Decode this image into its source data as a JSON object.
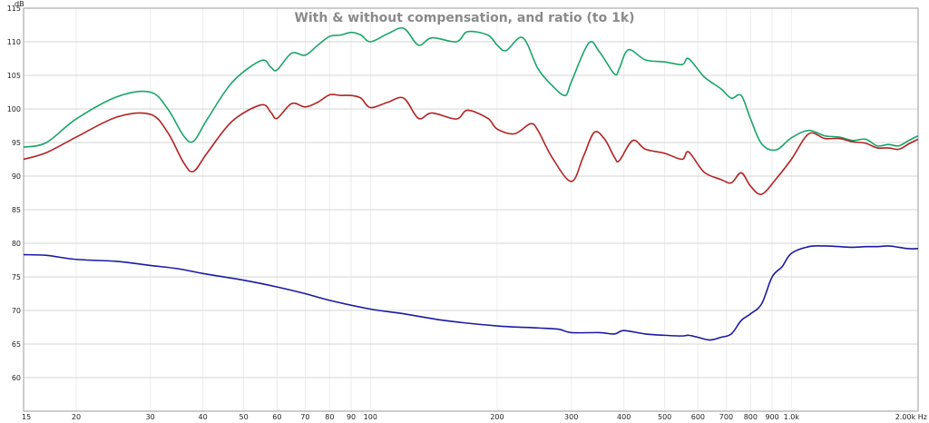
{
  "chart_data": {
    "type": "line",
    "title": "With & without compensation, and ratio (to 1k)",
    "ylabel": "dB",
    "xlabel": "",
    "x_scale": "log",
    "xlim": [
      15,
      2000
    ],
    "ylim": [
      55,
      115
    ],
    "grid": true,
    "y_ticks": [
      60,
      65,
      70,
      75,
      80,
      85,
      90,
      95,
      100,
      105,
      110,
      115
    ],
    "x_ticks": [
      {
        "value": 15,
        "label": "15"
      },
      {
        "value": 20,
        "label": "20"
      },
      {
        "value": 30,
        "label": "30"
      },
      {
        "value": 40,
        "label": "40"
      },
      {
        "value": 50,
        "label": "50"
      },
      {
        "value": 60,
        "label": "60"
      },
      {
        "value": 70,
        "label": "70"
      },
      {
        "value": 80,
        "label": "80"
      },
      {
        "value": 90,
        "label": "90"
      },
      {
        "value": 100,
        "label": "100"
      },
      {
        "value": 200,
        "label": "200"
      },
      {
        "value": 300,
        "label": "300"
      },
      {
        "value": 400,
        "label": "400"
      },
      {
        "value": 500,
        "label": "500"
      },
      {
        "value": 600,
        "label": "600"
      },
      {
        "value": 700,
        "label": "700"
      },
      {
        "value": 800,
        "label": "800"
      },
      {
        "value": 900,
        "label": "900"
      },
      {
        "value": 1000,
        "label": "1.0k"
      },
      {
        "value": 2000,
        "label": "2.00k Hz"
      }
    ],
    "series": [
      {
        "color": "#1aa46a",
        "points": [
          [
            15,
            94.3
          ],
          [
            17,
            95
          ],
          [
            20,
            98.5
          ],
          [
            25,
            101.8
          ],
          [
            30,
            102.5
          ],
          [
            33,
            100
          ],
          [
            36,
            96
          ],
          [
            38,
            95.2
          ],
          [
            41,
            98.5
          ],
          [
            47,
            104
          ],
          [
            55,
            107.2
          ],
          [
            58,
            106.2
          ],
          [
            60,
            105.8
          ],
          [
            65,
            108.3
          ],
          [
            70,
            108
          ],
          [
            75,
            109.5
          ],
          [
            80,
            110.8
          ],
          [
            85,
            111
          ],
          [
            90,
            111.4
          ],
          [
            95,
            111
          ],
          [
            100,
            110
          ],
          [
            110,
            111.2
          ],
          [
            120,
            112
          ],
          [
            130,
            109.5
          ],
          [
            140,
            110.6
          ],
          [
            160,
            110
          ],
          [
            170,
            111.5
          ],
          [
            190,
            111
          ],
          [
            200,
            109.5
          ],
          [
            210,
            108.7
          ],
          [
            230,
            110.6
          ],
          [
            250,
            106
          ],
          [
            270,
            103.5
          ],
          [
            290,
            102
          ],
          [
            300,
            104
          ],
          [
            330,
            109.8
          ],
          [
            350,
            108.5
          ],
          [
            380,
            105.2
          ],
          [
            390,
            106
          ],
          [
            410,
            108.8
          ],
          [
            450,
            107.3
          ],
          [
            500,
            107
          ],
          [
            550,
            106.6
          ],
          [
            570,
            107.5
          ],
          [
            620,
            104.8
          ],
          [
            680,
            103
          ],
          [
            720,
            101.6
          ],
          [
            760,
            102
          ],
          [
            800,
            98.5
          ],
          [
            850,
            94.8
          ],
          [
            920,
            93.9
          ],
          [
            1000,
            95.7
          ],
          [
            1100,
            96.8
          ],
          [
            1200,
            96
          ],
          [
            1300,
            95.8
          ],
          [
            1400,
            95.3
          ],
          [
            1500,
            95.5
          ],
          [
            1600,
            94.5
          ],
          [
            1700,
            94.7
          ],
          [
            1800,
            94.5
          ],
          [
            1900,
            95.3
          ],
          [
            2000,
            96
          ]
        ]
      },
      {
        "color": "#b22222",
        "points": [
          [
            15,
            92.5
          ],
          [
            17,
            93.5
          ],
          [
            20,
            95.8
          ],
          [
            25,
            98.8
          ],
          [
            30,
            99.2
          ],
          [
            33,
            96.5
          ],
          [
            36,
            92
          ],
          [
            38,
            90.7
          ],
          [
            41,
            93.5
          ],
          [
            47,
            98.2
          ],
          [
            55,
            100.6
          ],
          [
            58,
            99.5
          ],
          [
            60,
            98.6
          ],
          [
            65,
            100.8
          ],
          [
            70,
            100.3
          ],
          [
            75,
            101
          ],
          [
            80,
            102.1
          ],
          [
            85,
            102
          ],
          [
            90,
            102
          ],
          [
            95,
            101.6
          ],
          [
            100,
            100.2
          ],
          [
            110,
            101
          ],
          [
            120,
            101.6
          ],
          [
            130,
            98.6
          ],
          [
            140,
            99.4
          ],
          [
            160,
            98.5
          ],
          [
            170,
            99.8
          ],
          [
            190,
            98.6
          ],
          [
            200,
            97
          ],
          [
            220,
            96.3
          ],
          [
            240,
            97.8
          ],
          [
            250,
            96.8
          ],
          [
            270,
            92.8
          ],
          [
            300,
            89.2
          ],
          [
            320,
            92.8
          ],
          [
            340,
            96.5
          ],
          [
            360,
            95.5
          ],
          [
            380,
            92.8
          ],
          [
            390,
            92.3
          ],
          [
            420,
            95.3
          ],
          [
            450,
            94
          ],
          [
            500,
            93.4
          ],
          [
            550,
            92.5
          ],
          [
            570,
            93.6
          ],
          [
            620,
            90.6
          ],
          [
            680,
            89.5
          ],
          [
            720,
            89
          ],
          [
            760,
            90.5
          ],
          [
            800,
            88.5
          ],
          [
            850,
            87.3
          ],
          [
            920,
            89.6
          ],
          [
            1000,
            92.5
          ],
          [
            1100,
            96.3
          ],
          [
            1200,
            95.6
          ],
          [
            1300,
            95.6
          ],
          [
            1400,
            95.1
          ],
          [
            1500,
            94.9
          ],
          [
            1600,
            94.2
          ],
          [
            1700,
            94.2
          ],
          [
            1800,
            94
          ],
          [
            1900,
            94.8
          ],
          [
            2000,
            95.5
          ]
        ]
      },
      {
        "color": "#1a1aa0",
        "points": [
          [
            15,
            78.3
          ],
          [
            17,
            78.2
          ],
          [
            20,
            77.6
          ],
          [
            25,
            77.3
          ],
          [
            30,
            76.7
          ],
          [
            35,
            76.2
          ],
          [
            40,
            75.5
          ],
          [
            50,
            74.5
          ],
          [
            60,
            73.5
          ],
          [
            70,
            72.5
          ],
          [
            80,
            71.5
          ],
          [
            100,
            70.2
          ],
          [
            120,
            69.5
          ],
          [
            150,
            68.5
          ],
          [
            200,
            67.7
          ],
          [
            250,
            67.4
          ],
          [
            280,
            67.2
          ],
          [
            300,
            66.7
          ],
          [
            350,
            66.7
          ],
          [
            380,
            66.5
          ],
          [
            400,
            67
          ],
          [
            450,
            66.5
          ],
          [
            500,
            66.3
          ],
          [
            550,
            66.2
          ],
          [
            570,
            66.3
          ],
          [
            600,
            66
          ],
          [
            640,
            65.6
          ],
          [
            680,
            66
          ],
          [
            720,
            66.5
          ],
          [
            760,
            68.5
          ],
          [
            800,
            69.5
          ],
          [
            850,
            71
          ],
          [
            900,
            75
          ],
          [
            950,
            76.5
          ],
          [
            1000,
            78.5
          ],
          [
            1100,
            79.5
          ],
          [
            1200,
            79.6
          ],
          [
            1300,
            79.5
          ],
          [
            1400,
            79.4
          ],
          [
            1500,
            79.5
          ],
          [
            1600,
            79.5
          ],
          [
            1700,
            79.6
          ],
          [
            1800,
            79.4
          ],
          [
            1900,
            79.2
          ],
          [
            2000,
            79.2
          ]
        ]
      }
    ]
  }
}
